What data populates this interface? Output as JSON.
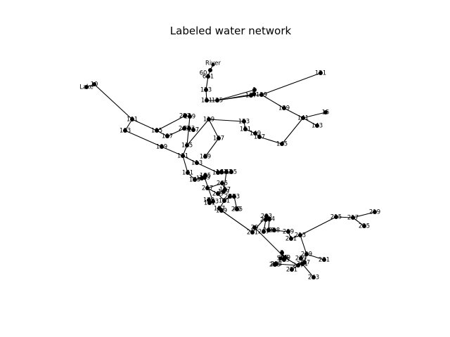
{
  "title": "Labeled water network",
  "chart_data": {
    "type": "network",
    "title": "Labeled water network",
    "nodes": [
      {
        "id": "River"
      },
      {
        "id": "60"
      },
      {
        "id": "601"
      },
      {
        "id": "10"
      },
      {
        "id": "Lake"
      },
      {
        "id": "121"
      },
      {
        "id": "123"
      },
      {
        "id": "1"
      },
      {
        "id": "2"
      },
      {
        "id": "125"
      },
      {
        "id": "127"
      },
      {
        "id": "129"
      },
      {
        "id": "119"
      },
      {
        "id": "115"
      },
      {
        "id": "131"
      },
      {
        "id": "139"
      },
      {
        "id": "141"
      },
      {
        "id": "15"
      },
      {
        "id": "143"
      },
      {
        "id": "101"
      },
      {
        "id": "103"
      },
      {
        "id": "105"
      },
      {
        "id": "107"
      },
      {
        "id": "109"
      },
      {
        "id": "111"
      },
      {
        "id": "113"
      },
      {
        "id": "117"
      },
      {
        "id": "261"
      },
      {
        "id": "257"
      },
      {
        "id": "259"
      },
      {
        "id": "263"
      },
      {
        "id": "153"
      },
      {
        "id": "151"
      },
      {
        "id": "149"
      },
      {
        "id": "147"
      },
      {
        "id": "145"
      },
      {
        "id": "157"
      },
      {
        "id": "159"
      },
      {
        "id": "161"
      },
      {
        "id": "163"
      },
      {
        "id": "167"
      },
      {
        "id": "169"
      },
      {
        "id": "171"
      },
      {
        "id": "173"
      },
      {
        "id": "179"
      },
      {
        "id": "181"
      },
      {
        "id": "183"
      },
      {
        "id": "185"
      },
      {
        "id": "187"
      },
      {
        "id": "189"
      },
      {
        "id": "191"
      },
      {
        "id": "193"
      },
      {
        "id": "195"
      },
      {
        "id": "197"
      },
      {
        "id": "199"
      },
      {
        "id": "201"
      },
      {
        "id": "203"
      },
      {
        "id": "204"
      },
      {
        "id": "205"
      },
      {
        "id": "206"
      },
      {
        "id": "207"
      },
      {
        "id": "208"
      },
      {
        "id": "209"
      },
      {
        "id": "211"
      },
      {
        "id": "213"
      },
      {
        "id": "215"
      },
      {
        "id": "217"
      },
      {
        "id": "219"
      },
      {
        "id": "225"
      },
      {
        "id": "229"
      },
      {
        "id": "231"
      },
      {
        "id": "235"
      },
      {
        "id": "237"
      },
      {
        "id": "239"
      },
      {
        "id": "241"
      },
      {
        "id": "243"
      },
      {
        "id": "247"
      },
      {
        "id": "249"
      },
      {
        "id": "251"
      },
      {
        "id": "253"
      },
      {
        "id": "255"
      },
      {
        "id": "265"
      },
      {
        "id": "267"
      },
      {
        "id": "269"
      },
      {
        "id": "271"
      },
      {
        "id": "273"
      },
      {
        "id": "275"
      },
      {
        "id": "3"
      },
      {
        "id": "35"
      },
      {
        "id": "40"
      },
      {
        "id": "50"
      },
      {
        "id": "20"
      }
    ],
    "edges": [
      [
        "River",
        "60"
      ],
      [
        "60",
        "601"
      ],
      [
        "601",
        "123"
      ],
      [
        "123",
        "121"
      ],
      [
        "121",
        "125"
      ],
      [
        "125",
        "1"
      ],
      [
        "125",
        "2"
      ],
      [
        "125",
        "127"
      ],
      [
        "127",
        "129"
      ],
      [
        "129",
        "121_r"
      ],
      [
        "129",
        "139"
      ],
      [
        "139",
        "141"
      ],
      [
        "141",
        "15"
      ],
      [
        "141",
        "143"
      ],
      [
        "141",
        "145"
      ],
      [
        "145",
        "147"
      ],
      [
        "147",
        "149"
      ],
      [
        "149",
        "151"
      ],
      [
        "151",
        "153"
      ],
      [
        "153",
        "119"
      ],
      [
        "119",
        "115"
      ],
      [
        "119",
        "157"
      ],
      [
        "157",
        "159"
      ],
      [
        "Lake",
        "10"
      ],
      [
        "10",
        "101"
      ],
      [
        "101",
        "103"
      ],
      [
        "103",
        "109"
      ],
      [
        "109",
        "111"
      ],
      [
        "111",
        "113"
      ],
      [
        "101",
        "105"
      ],
      [
        "105",
        "107"
      ],
      [
        "107",
        "261"
      ],
      [
        "261",
        "263"
      ],
      [
        "105",
        "257"
      ],
      [
        "257",
        "259"
      ],
      [
        "259",
        "115"
      ],
      [
        "115",
        "111"
      ],
      [
        "111",
        "171"
      ],
      [
        "171",
        "173"
      ],
      [
        "173",
        "185"
      ],
      [
        "185",
        "187"
      ],
      [
        "187",
        "189"
      ],
      [
        "189",
        "183"
      ],
      [
        "183",
        "181"
      ],
      [
        "181",
        "179"
      ],
      [
        "113",
        "193"
      ],
      [
        "193",
        "195"
      ],
      [
        "193",
        "161"
      ],
      [
        "161",
        "163"
      ],
      [
        "163",
        "169"
      ],
      [
        "169",
        "167"
      ],
      [
        "167",
        "265"
      ],
      [
        "265",
        "267"
      ],
      [
        "267",
        "269"
      ],
      [
        "269",
        "191"
      ],
      [
        "191",
        "271"
      ],
      [
        "271",
        "273"
      ],
      [
        "273",
        "275"
      ],
      [
        "275",
        "40"
      ],
      [
        "191",
        "197"
      ],
      [
        "197",
        "199"
      ],
      [
        "199",
        "201"
      ],
      [
        "201",
        "203"
      ],
      [
        "203",
        "205"
      ],
      [
        "205",
        "204"
      ],
      [
        "204",
        "206"
      ],
      [
        "206",
        "208"
      ],
      [
        "208",
        "209"
      ],
      [
        "209",
        "211"
      ],
      [
        "211",
        "213"
      ],
      [
        "213",
        "215"
      ],
      [
        "215",
        "217"
      ],
      [
        "217",
        "219"
      ],
      [
        "217",
        "225"
      ],
      [
        "213",
        "229"
      ],
      [
        "229",
        "231"
      ],
      [
        "229",
        "237"
      ],
      [
        "237",
        "239"
      ],
      [
        "237",
        "241"
      ],
      [
        "241",
        "243"
      ],
      [
        "237",
        "247"
      ],
      [
        "247",
        "249"
      ],
      [
        "249",
        "3"
      ],
      [
        "247",
        "251"
      ],
      [
        "247",
        "253"
      ],
      [
        "253",
        "255"
      ],
      [
        "249",
        "20"
      ],
      [
        "3",
        "35"
      ],
      [
        "35",
        "50"
      ],
      [
        "207",
        "205"
      ]
    ]
  }
}
